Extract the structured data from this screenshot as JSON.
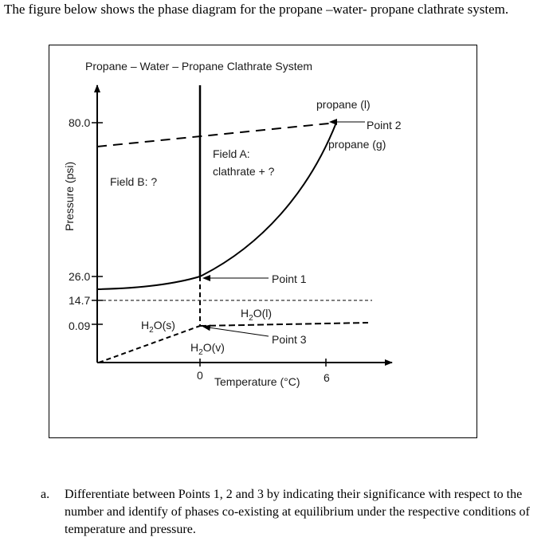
{
  "intro": "The figure below shows the phase diagram for the propane –water- propane clathrate system.",
  "diagram": {
    "title": "Propane – Water – Propane Clathrate System",
    "y_axis_label": "Pressure (psi)",
    "x_axis_label": "Temperature (°C)",
    "y_ticks": [
      "80.0",
      "26.0",
      "14.7",
      "0.09"
    ],
    "x_ticks": [
      "0",
      "6"
    ],
    "labels": {
      "propane_l": "propane (l)",
      "point2": "Point 2",
      "propane_g": "propane (g)",
      "field_a_line1": "Field A:",
      "field_a_line2": "clathrate + ?",
      "field_b": "Field B: ?",
      "point1": "Point 1",
      "h2o_l_main": "H",
      "h2o_l_sub": "2",
      "h2o_l_end": "O(l)",
      "h2o_s_main": "H",
      "h2o_s_sub": "2",
      "h2o_s_end": "O(s)",
      "h2o_v_main": "H",
      "h2o_v_sub": "2",
      "h2o_v_end": "O(v)",
      "point3": "Point 3"
    }
  },
  "question": {
    "marker": "a.",
    "text": "Differentiate between Points 1, 2 and 3 by indicating their significance with respect to the number and identify of phases co-existing at equilibrium under the respective conditions of temperature and pressure."
  }
}
